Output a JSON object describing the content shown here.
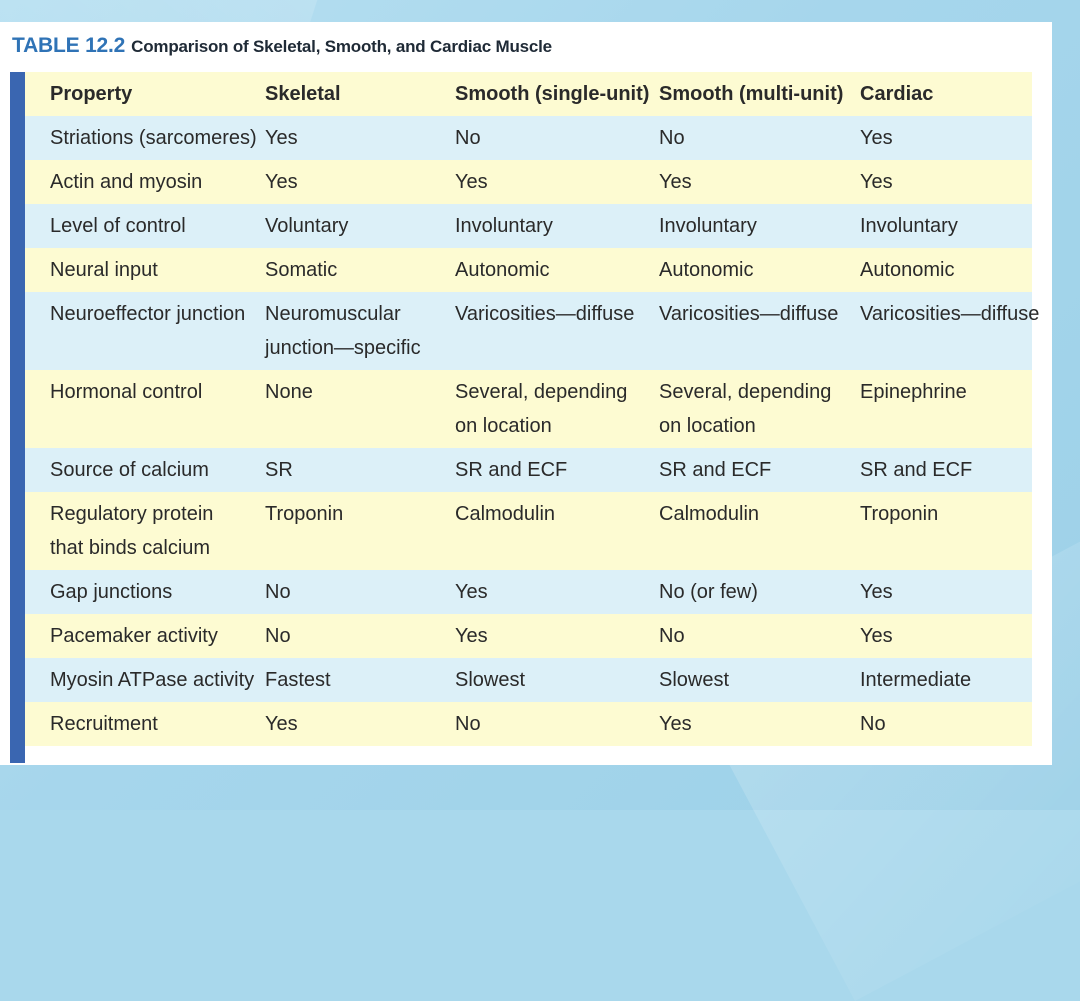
{
  "table": {
    "label": "TABLE 12.2",
    "caption": "Comparison of Skeletal, Smooth, and Cardiac Muscle",
    "headers": [
      "Property",
      "Skeletal",
      "Smooth (single-unit)",
      "Smooth (multi-unit)",
      "Cardiac"
    ],
    "rows": [
      [
        "Striations (sarcomeres)",
        "Yes",
        "No",
        "No",
        "Yes"
      ],
      [
        "Actin and myosin",
        "Yes",
        "Yes",
        "Yes",
        "Yes"
      ],
      [
        "Level of control",
        "Voluntary",
        "Involuntary",
        "Involuntary",
        "Involuntary"
      ],
      [
        "Neural input",
        "Somatic",
        "Autonomic",
        "Autonomic",
        "Autonomic"
      ],
      [
        "Neuroeffector junction",
        "Neuromuscular junction—specific",
        "Varicosities—diffuse",
        "Varicosities—diffuse",
        "Varicosities—diffuse"
      ],
      [
        "Hormonal control",
        "None",
        "Several, depending on location",
        "Several, depending on location",
        "Epinephrine"
      ],
      [
        "Source of calcium",
        "SR",
        "SR and ECF",
        "SR and ECF",
        "SR and ECF"
      ],
      [
        "Regulatory protein that binds calcium",
        "Troponin",
        "Calmodulin",
        "Calmodulin",
        "Troponin"
      ],
      [
        "Gap junctions",
        "No",
        "Yes",
        "No (or few)",
        "Yes"
      ],
      [
        "Pacemaker activity",
        "No",
        "Yes",
        "No",
        "Yes"
      ],
      [
        "Myosin ATPase activity",
        "Fastest",
        "Slowest",
        "Slowest",
        "Intermediate"
      ],
      [
        "Recruitment",
        "Yes",
        "No",
        "Yes",
        "No"
      ]
    ]
  },
  "colors": {
    "label": "#2f73b6",
    "accent_bar": "#3a66b1",
    "row_yellow": "#fdfbd2",
    "row_blue": "#dcf0f8",
    "background": "#a9d8ec"
  }
}
